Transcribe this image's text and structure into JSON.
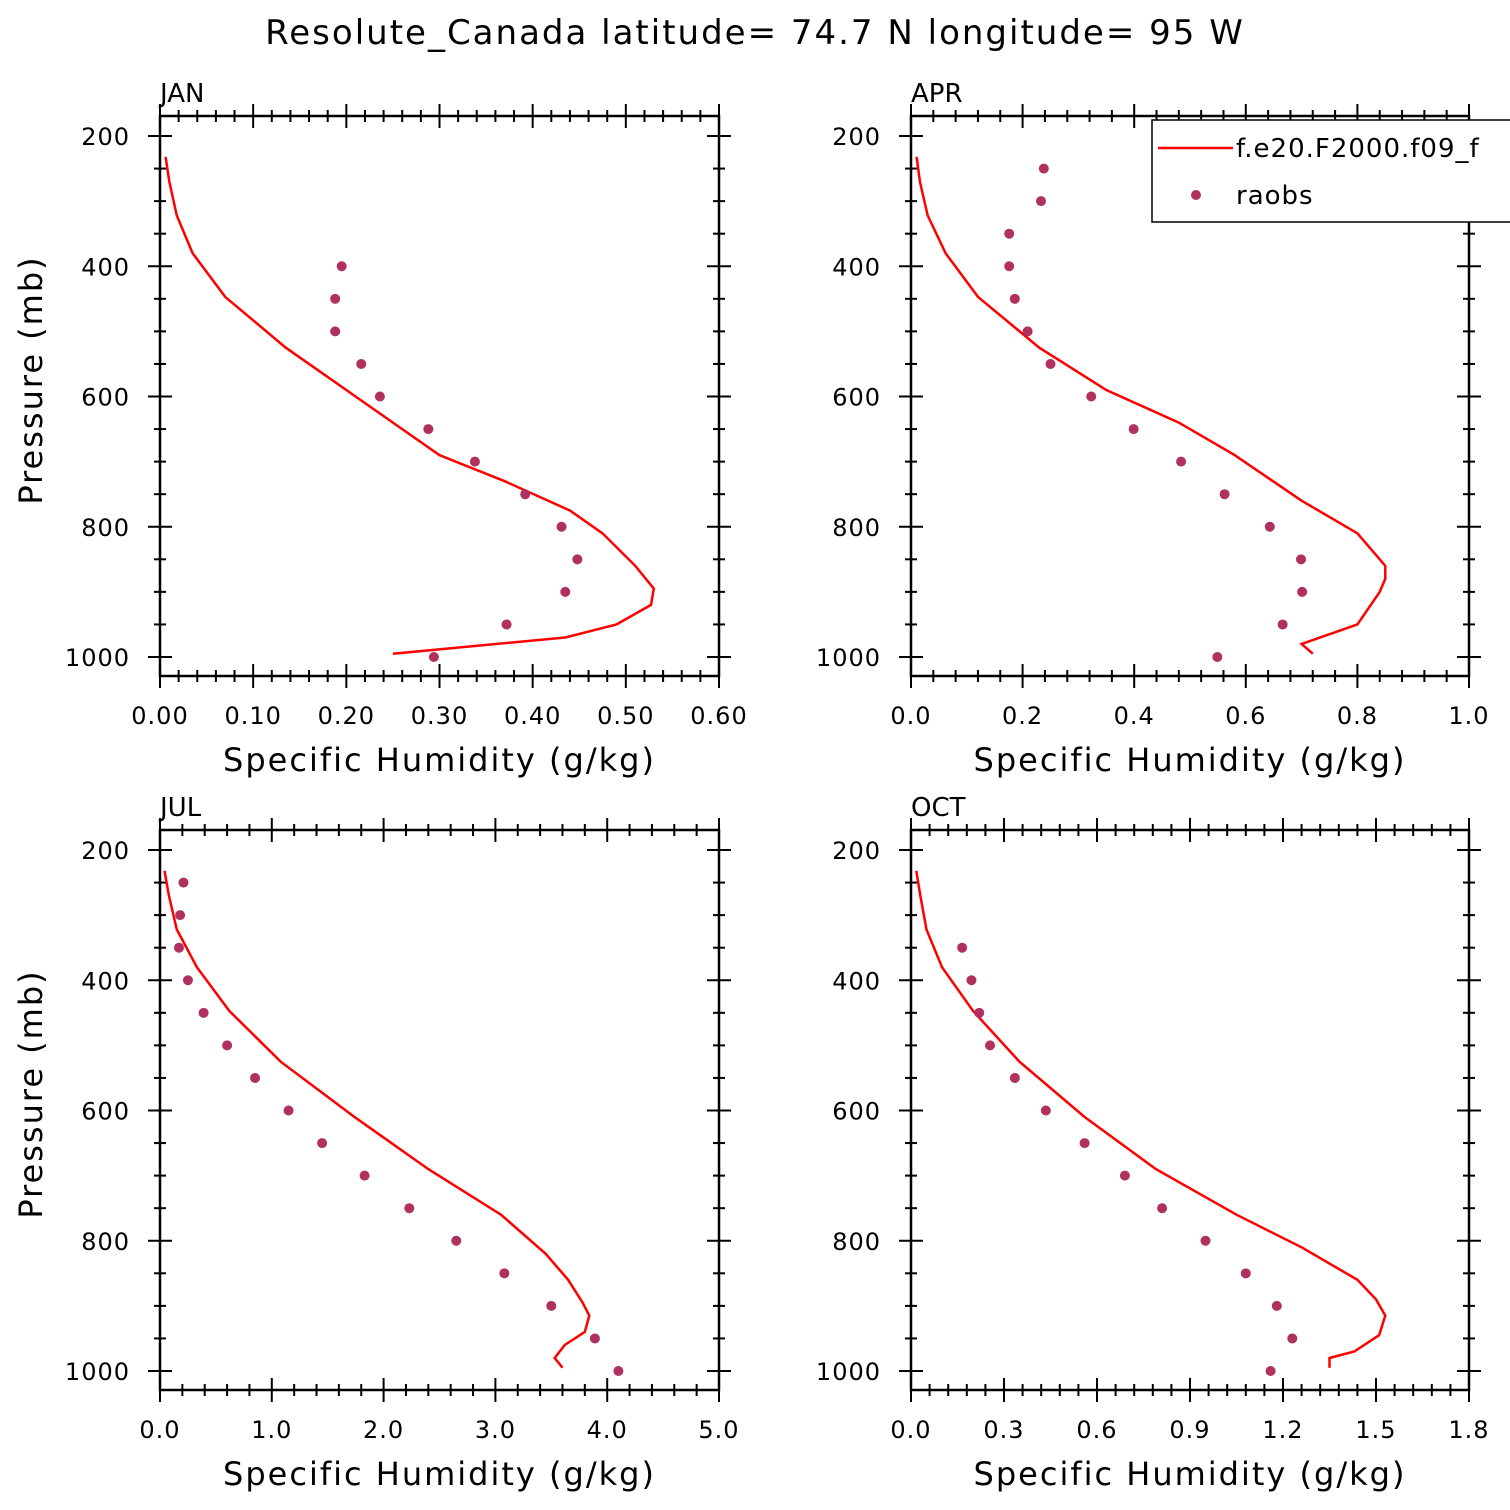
{
  "figure": {
    "title": "Resolute_Canada  latitude= 74.7 N longitude= 95 W"
  },
  "legend": {
    "model_label": "f.e20.F2000.f09_f",
    "obs_label": "raobs"
  },
  "colors": {
    "model": "#ff0000",
    "obs": "#b03060",
    "axes": "#000000",
    "background": "#ffffff"
  },
  "chart_data": [
    {
      "type": "line",
      "title": "JAN",
      "xlabel": "Specific Humidity (g/kg)",
      "ylabel": "Pressure (mb)",
      "xlim": [
        0,
        0.6
      ],
      "ylim": [
        200,
        1000
      ],
      "y_inverted": false,
      "xticks": [
        0,
        0.1,
        0.2,
        0.3,
        0.4,
        0.5,
        0.6
      ],
      "xtick_labels": [
        "0.00",
        "0.10",
        "0.20",
        "0.30",
        "0.40",
        "0.50",
        "0.60"
      ],
      "yticks": [
        200,
        400,
        600,
        800,
        1000
      ],
      "ytick_labels": [
        "200",
        "400",
        "600",
        "800",
        "1000"
      ],
      "series": [
        {
          "name": "f.e20.F2000.f09_f",
          "style": "line",
          "x": [
            0.006,
            0.01,
            0.018,
            0.035,
            0.07,
            0.135,
            0.2,
            0.25,
            0.3,
            0.37,
            0.44,
            0.475,
            0.51,
            0.53,
            0.527,
            0.49,
            0.435,
            0.25
          ],
          "y": [
            232,
            270,
            322,
            380,
            447,
            525,
            590,
            640,
            690,
            730,
            775,
            810,
            860,
            895,
            920,
            950,
            970,
            995
          ]
        },
        {
          "name": "raobs",
          "style": "markers",
          "x": [
            0.195,
            0.188,
            0.188,
            0.216,
            0.236,
            0.288,
            0.338,
            0.392,
            0.431,
            0.448,
            0.435,
            0.372,
            0.294
          ],
          "y": [
            400,
            450,
            500,
            550,
            600,
            650,
            700,
            750,
            800,
            850,
            900,
            950,
            1000
          ]
        }
      ]
    },
    {
      "type": "line",
      "title": "APR",
      "xlabel": "Specific Humidity (g/kg)",
      "ylabel": "",
      "xlim": [
        0,
        1.0
      ],
      "ylim": [
        200,
        1000
      ],
      "xticks": [
        0,
        0.2,
        0.4,
        0.6,
        0.8,
        1.0
      ],
      "xtick_labels": [
        "0.0",
        "0.2",
        "0.4",
        "0.6",
        "0.8",
        "1.0"
      ],
      "yticks": [
        200,
        400,
        600,
        800,
        1000
      ],
      "ytick_labels": [
        "200",
        "400",
        "600",
        "800",
        "1000"
      ],
      "series": [
        {
          "name": "f.e20.F2000.f09_f",
          "style": "line",
          "x": [
            0.01,
            0.016,
            0.03,
            0.062,
            0.12,
            0.23,
            0.35,
            0.48,
            0.58,
            0.7,
            0.8,
            0.85,
            0.85,
            0.84,
            0.8,
            0.7,
            0.72
          ],
          "y": [
            232,
            270,
            322,
            380,
            447,
            525,
            590,
            640,
            690,
            760,
            810,
            860,
            880,
            900,
            950,
            980,
            995
          ]
        },
        {
          "name": "raobs",
          "style": "markers",
          "x": [
            0.238,
            0.233,
            0.176,
            0.176,
            0.186,
            0.209,
            0.25,
            0.323,
            0.399,
            0.484,
            0.562,
            0.643,
            0.699,
            0.701,
            0.666,
            0.549
          ],
          "y": [
            250,
            300,
            350,
            400,
            450,
            500,
            550,
            600,
            650,
            700,
            750,
            800,
            850,
            900,
            950,
            1000
          ]
        }
      ]
    },
    {
      "type": "line",
      "title": "JUL",
      "xlabel": "Specific Humidity (g/kg)",
      "ylabel": "Pressure (mb)",
      "xlim": [
        0,
        5.0
      ],
      "ylim": [
        200,
        1000
      ],
      "xticks": [
        0,
        1,
        2,
        3,
        4,
        5
      ],
      "xtick_labels": [
        "0.0",
        "1.0",
        "2.0",
        "3.0",
        "4.0",
        "5.0"
      ],
      "yticks": [
        200,
        400,
        600,
        800,
        1000
      ],
      "ytick_labels": [
        "200",
        "400",
        "600",
        "800",
        "1000"
      ],
      "series": [
        {
          "name": "f.e20.F2000.f09_f",
          "style": "line",
          "x": [
            0.04,
            0.08,
            0.15,
            0.33,
            0.62,
            1.08,
            1.74,
            2.4,
            3.05,
            3.45,
            3.65,
            3.78,
            3.84,
            3.8,
            3.62,
            3.53,
            3.6
          ],
          "y": [
            232,
            270,
            322,
            380,
            447,
            525,
            610,
            690,
            760,
            820,
            860,
            895,
            915,
            940,
            960,
            980,
            995
          ]
        },
        {
          "name": "raobs",
          "style": "markers",
          "x": [
            0.21,
            0.18,
            0.17,
            0.25,
            0.39,
            0.6,
            0.85,
            1.15,
            1.45,
            1.83,
            2.23,
            2.65,
            3.08,
            3.5,
            3.89,
            4.1
          ],
          "y": [
            250,
            300,
            350,
            400,
            450,
            500,
            550,
            600,
            650,
            700,
            750,
            800,
            850,
            900,
            950,
            1000
          ]
        }
      ]
    },
    {
      "type": "line",
      "title": "OCT",
      "xlabel": "Specific Humidity (g/kg)",
      "ylabel": "",
      "xlim": [
        0,
        1.8
      ],
      "ylim": [
        200,
        1000
      ],
      "xticks": [
        0,
        0.3,
        0.6,
        0.9,
        1.2,
        1.5,
        1.8
      ],
      "xtick_labels": [
        "0.0",
        "0.3",
        "0.6",
        "0.9",
        "1.2",
        "1.5",
        "1.8"
      ],
      "yticks": [
        200,
        400,
        600,
        800,
        1000
      ],
      "ytick_labels": [
        "200",
        "400",
        "600",
        "800",
        "1000"
      ],
      "series": [
        {
          "name": "f.e20.F2000.f09_f",
          "style": "line",
          "x": [
            0.017,
            0.03,
            0.05,
            0.1,
            0.2,
            0.35,
            0.56,
            0.79,
            1.05,
            1.26,
            1.44,
            1.5,
            1.53,
            1.51,
            1.43,
            1.35,
            1.35
          ],
          "y": [
            232,
            270,
            322,
            380,
            447,
            525,
            610,
            690,
            760,
            810,
            860,
            890,
            915,
            945,
            970,
            980,
            995
          ]
        },
        {
          "name": "raobs",
          "style": "markers",
          "x": [
            0.165,
            0.195,
            0.22,
            0.255,
            0.335,
            0.435,
            0.56,
            0.69,
            0.81,
            0.95,
            1.08,
            1.18,
            1.23,
            1.16
          ],
          "y": [
            350,
            400,
            450,
            500,
            550,
            600,
            650,
            700,
            750,
            800,
            850,
            900,
            950,
            1000
          ]
        }
      ]
    }
  ]
}
